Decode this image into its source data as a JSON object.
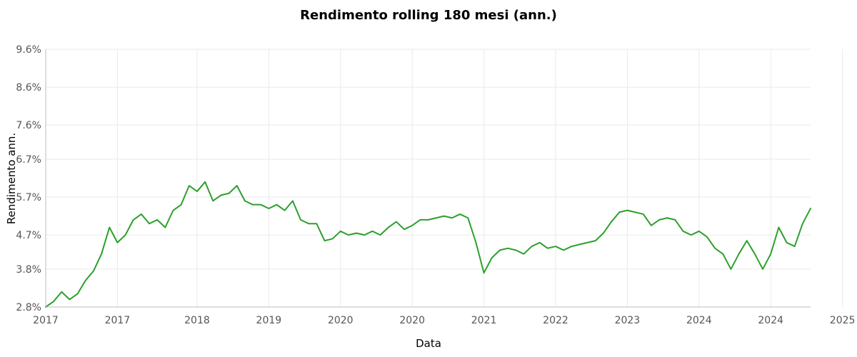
{
  "chart_data": {
    "type": "line",
    "title": "Rendimento rolling 180 mesi (ann.)",
    "xlabel": "Data",
    "ylabel": "Rendimento ann.",
    "xlim": [
      "2016-12",
      "2024-12"
    ],
    "ylim": [
      2.8,
      9.6
    ],
    "x_ticks": [
      {
        "x": "2016-12",
        "label": "2017"
      },
      {
        "x": "2017-09",
        "label": "2017"
      },
      {
        "x": "2018-07",
        "label": "2018"
      },
      {
        "x": "2019-04",
        "label": "2019"
      },
      {
        "x": "2020-01",
        "label": "2020"
      },
      {
        "x": "2020-10",
        "label": "2020"
      },
      {
        "x": "2021-07",
        "label": "2021"
      },
      {
        "x": "2022-04",
        "label": "2022"
      },
      {
        "x": "2023-01",
        "label": "2023"
      },
      {
        "x": "2023-10",
        "label": "2024"
      },
      {
        "x": "2024-07",
        "label": "2024"
      },
      {
        "x": "2025-04",
        "label": "2025"
      }
    ],
    "y_ticks": [
      {
        "y": 2.8,
        "label": "2.8%"
      },
      {
        "y": 3.8,
        "label": "3.8%"
      },
      {
        "y": 4.7,
        "label": "4.7%"
      },
      {
        "y": 5.7,
        "label": "5.7%"
      },
      {
        "y": 6.7,
        "label": "6.7%"
      },
      {
        "y": 7.6,
        "label": "7.6%"
      },
      {
        "y": 8.6,
        "label": "8.6%"
      },
      {
        "y": 9.6,
        "label": "9.6%"
      }
    ],
    "grid": true,
    "legend": false,
    "series": [
      {
        "color": "#2ca02c",
        "points": [
          [
            "2016-12",
            2.8
          ],
          [
            "2017-01",
            2.95
          ],
          [
            "2017-02",
            3.2
          ],
          [
            "2017-03",
            3.0
          ],
          [
            "2017-04",
            3.15
          ],
          [
            "2017-05",
            3.5
          ],
          [
            "2017-06",
            3.75
          ],
          [
            "2017-07",
            4.2
          ],
          [
            "2017-08",
            4.9
          ],
          [
            "2017-09",
            4.5
          ],
          [
            "2017-10",
            4.7
          ],
          [
            "2017-11",
            5.1
          ],
          [
            "2017-12",
            5.25
          ],
          [
            "2018-01",
            5.0
          ],
          [
            "2018-02",
            5.1
          ],
          [
            "2018-03",
            4.9
          ],
          [
            "2018-04",
            5.35
          ],
          [
            "2018-05",
            5.5
          ],
          [
            "2018-06",
            6.0
          ],
          [
            "2018-07",
            5.85
          ],
          [
            "2018-08",
            6.1
          ],
          [
            "2018-09",
            5.6
          ],
          [
            "2018-10",
            5.75
          ],
          [
            "2018-11",
            5.8
          ],
          [
            "2018-12",
            6.0
          ],
          [
            "2019-01",
            5.6
          ],
          [
            "2019-02",
            5.5
          ],
          [
            "2019-03",
            5.5
          ],
          [
            "2019-04",
            5.4
          ],
          [
            "2019-05",
            5.5
          ],
          [
            "2019-06",
            5.35
          ],
          [
            "2019-07",
            5.6
          ],
          [
            "2019-08",
            5.1
          ],
          [
            "2019-09",
            5.0
          ],
          [
            "2019-10",
            5.0
          ],
          [
            "2019-11",
            4.55
          ],
          [
            "2019-12",
            4.6
          ],
          [
            "2020-01",
            4.8
          ],
          [
            "2020-02",
            4.7
          ],
          [
            "2020-03",
            4.75
          ],
          [
            "2020-04",
            4.7
          ],
          [
            "2020-05",
            4.8
          ],
          [
            "2020-06",
            4.7
          ],
          [
            "2020-07",
            4.9
          ],
          [
            "2020-08",
            5.05
          ],
          [
            "2020-09",
            4.85
          ],
          [
            "2020-10",
            4.95
          ],
          [
            "2020-11",
            5.1
          ],
          [
            "2020-12",
            5.1
          ],
          [
            "2021-01",
            5.15
          ],
          [
            "2021-02",
            5.2
          ],
          [
            "2021-03",
            5.15
          ],
          [
            "2021-04",
            5.25
          ],
          [
            "2021-05",
            5.15
          ],
          [
            "2021-06",
            4.5
          ],
          [
            "2021-07",
            3.7
          ],
          [
            "2021-08",
            4.1
          ],
          [
            "2021-09",
            4.3
          ],
          [
            "2021-10",
            4.35
          ],
          [
            "2021-11",
            4.3
          ],
          [
            "2021-12",
            4.2
          ],
          [
            "2022-01",
            4.4
          ],
          [
            "2022-02",
            4.5
          ],
          [
            "2022-03",
            4.35
          ],
          [
            "2022-04",
            4.4
          ],
          [
            "2022-05",
            4.3
          ],
          [
            "2022-06",
            4.4
          ],
          [
            "2022-07",
            4.45
          ],
          [
            "2022-08",
            4.5
          ],
          [
            "2022-09",
            4.55
          ],
          [
            "2022-10",
            4.75
          ],
          [
            "2022-11",
            5.05
          ],
          [
            "2022-12",
            5.3
          ],
          [
            "2023-01",
            5.35
          ],
          [
            "2023-02",
            5.3
          ],
          [
            "2023-03",
            5.25
          ],
          [
            "2023-04",
            4.95
          ],
          [
            "2023-05",
            5.1
          ],
          [
            "2023-06",
            5.15
          ],
          [
            "2023-07",
            5.1
          ],
          [
            "2023-08",
            4.8
          ],
          [
            "2023-09",
            4.7
          ],
          [
            "2023-10",
            4.8
          ],
          [
            "2023-11",
            4.65
          ],
          [
            "2023-12",
            4.35
          ],
          [
            "2024-01",
            4.2
          ],
          [
            "2024-02",
            3.8
          ],
          [
            "2024-03",
            4.2
          ],
          [
            "2024-04",
            4.55
          ],
          [
            "2024-05",
            4.2
          ],
          [
            "2024-06",
            3.8
          ],
          [
            "2024-07",
            4.2
          ],
          [
            "2024-08",
            4.9
          ],
          [
            "2024-09",
            4.5
          ],
          [
            "2024-10",
            4.4
          ],
          [
            "2024-11",
            5.0
          ],
          [
            "2024-12",
            5.4
          ]
        ]
      }
    ]
  }
}
